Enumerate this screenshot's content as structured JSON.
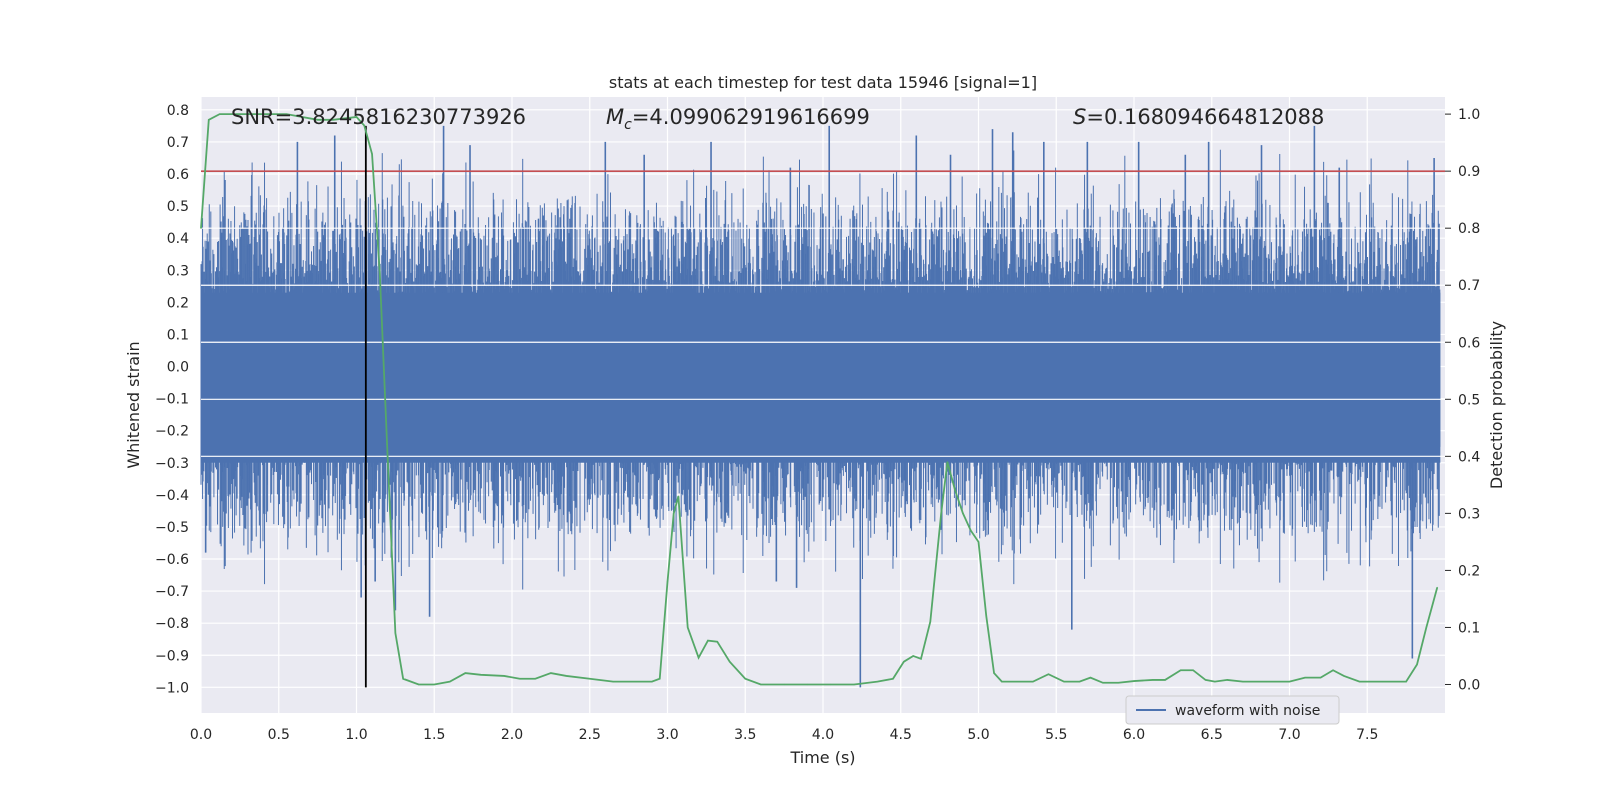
{
  "chart_data": {
    "type": "line",
    "title": "stats at each timestep for test data 15946 [signal=1]",
    "xlabel": "Time (s)",
    "ylabel": "Whitened strain",
    "y2label": "Detection probability",
    "xlim": [
      0.0,
      8.0
    ],
    "ylim": [
      -1.08,
      0.84
    ],
    "y2lim": [
      -0.05,
      1.03
    ],
    "xticks": [
      "0.0",
      "0.5",
      "1.0",
      "1.5",
      "2.0",
      "2.5",
      "3.0",
      "3.5",
      "4.0",
      "4.5",
      "5.0",
      "5.5",
      "6.0",
      "6.5",
      "7.0",
      "7.5"
    ],
    "xtick_values": [
      0,
      0.5,
      1,
      1.5,
      2,
      2.5,
      3,
      3.5,
      4,
      4.5,
      5,
      5.5,
      6,
      6.5,
      7,
      7.5
    ],
    "yticks": [
      "0.8",
      "0.7",
      "0.6",
      "0.5",
      "0.4",
      "0.3",
      "0.2",
      "0.1",
      "0.0",
      "−0.1",
      "−0.2",
      "−0.3",
      "−0.4",
      "−0.5",
      "−0.6",
      "−0.7",
      "−0.8",
      "−0.9",
      "−1.0"
    ],
    "ytick_values": [
      0.8,
      0.7,
      0.6,
      0.5,
      0.4,
      0.3,
      0.2,
      0.1,
      0,
      -0.1,
      -0.2,
      -0.3,
      -0.4,
      -0.5,
      -0.6,
      -0.7,
      -0.8,
      -0.9,
      -1.0
    ],
    "y2ticks": [
      "1.0",
      "0.9",
      "0.8",
      "0.7",
      "0.6",
      "0.5",
      "0.4",
      "0.3",
      "0.2",
      "0.1",
      "0.0"
    ],
    "y2tick_values": [
      1,
      0.9,
      0.8,
      0.7,
      0.6,
      0.5,
      0.4,
      0.3,
      0.2,
      0.1,
      0
    ],
    "grid": true,
    "legend": {
      "placement": "bottom-right",
      "entries": [
        "waveform with noise"
      ]
    },
    "annotations": {
      "snr": "SNR=3.8245816230773926",
      "mc_prefix": "M",
      "mc_sub": "c",
      "mc_value": "=4.099062919616699",
      "s_prefix": "S",
      "s_value": "=0.168094664812088"
    },
    "threshold_line": {
      "y2": 0.9,
      "color": "#c44e52"
    },
    "marker_line": {
      "x": 1.06,
      "y_from": -1.0,
      "y_to": 0.75,
      "color": "#000000"
    },
    "series": [
      {
        "name": "waveform with noise",
        "axis": "left",
        "color": "#4c72b0",
        "description_envelope": {
          "typical_amplitude": 0.3,
          "peak_min": -1.0,
          "peak_max": 0.8
        },
        "spikes": [
          {
            "x": 0.03,
            "y": -0.58
          },
          {
            "x": 0.62,
            "y": 0.7
          },
          {
            "x": 0.86,
            "y": 0.72
          },
          {
            "x": 1.03,
            "y": -0.72
          },
          {
            "x": 1.12,
            "y": -0.67
          },
          {
            "x": 1.25,
            "y": -0.76
          },
          {
            "x": 1.47,
            "y": -0.78
          },
          {
            "x": 1.56,
            "y": 0.75
          },
          {
            "x": 1.73,
            "y": 0.69
          },
          {
            "x": 2.6,
            "y": 0.7
          },
          {
            "x": 2.85,
            "y": 0.66
          },
          {
            "x": 3.28,
            "y": 0.7
          },
          {
            "x": 3.7,
            "y": -0.67
          },
          {
            "x": 3.79,
            "y": 0.62
          },
          {
            "x": 3.83,
            "y": -0.69
          },
          {
            "x": 4.04,
            "y": 0.75
          },
          {
            "x": 4.24,
            "y": -1.0
          },
          {
            "x": 4.6,
            "y": 0.72
          },
          {
            "x": 4.82,
            "y": 0.66
          },
          {
            "x": 5.09,
            "y": 0.74
          },
          {
            "x": 5.22,
            "y": 0.73
          },
          {
            "x": 5.42,
            "y": 0.7
          },
          {
            "x": 5.6,
            "y": -0.82
          },
          {
            "x": 5.7,
            "y": 0.7
          },
          {
            "x": 6.03,
            "y": 0.7
          },
          {
            "x": 6.33,
            "y": 0.66
          },
          {
            "x": 6.48,
            "y": 0.7
          },
          {
            "x": 6.82,
            "y": 0.69
          },
          {
            "x": 7.16,
            "y": 0.75
          },
          {
            "x": 7.32,
            "y": 0.62
          },
          {
            "x": 7.79,
            "y": -0.91
          },
          {
            "x": 7.93,
            "y": 0.65
          }
        ]
      },
      {
        "name": "",
        "axis": "right",
        "color": "#55a868",
        "x": [
          0.0,
          0.05,
          0.12,
          0.3,
          0.55,
          0.75,
          0.85,
          1.0,
          1.05,
          1.1,
          1.15,
          1.2,
          1.25,
          1.3,
          1.4,
          1.5,
          1.6,
          1.7,
          1.8,
          1.95,
          2.05,
          2.15,
          2.25,
          2.35,
          2.5,
          2.65,
          2.8,
          2.9,
          2.95,
          3.0,
          3.04,
          3.07,
          3.13,
          3.2,
          3.26,
          3.32,
          3.4,
          3.5,
          3.6,
          3.75,
          3.9,
          4.05,
          4.2,
          4.35,
          4.45,
          4.52,
          4.58,
          4.63,
          4.69,
          4.76,
          4.8,
          4.85,
          4.9,
          4.95,
          5.0,
          5.05,
          5.1,
          5.15,
          5.25,
          5.35,
          5.45,
          5.55,
          5.65,
          5.72,
          5.8,
          5.9,
          6.0,
          6.12,
          6.2,
          6.3,
          6.38,
          6.46,
          6.52,
          6.6,
          6.7,
          6.85,
          7.0,
          7.1,
          7.2,
          7.28,
          7.35,
          7.45,
          7.6,
          7.75,
          7.82,
          7.88,
          7.95
        ],
        "y": [
          0.8,
          0.99,
          1.0,
          1.0,
          1.0,
          0.99,
          0.99,
          0.995,
          0.98,
          0.93,
          0.72,
          0.4,
          0.09,
          0.01,
          0.0,
          0.0,
          0.005,
          0.02,
          0.017,
          0.015,
          0.01,
          0.01,
          0.02,
          0.015,
          0.01,
          0.005,
          0.005,
          0.005,
          0.01,
          0.18,
          0.3,
          0.33,
          0.1,
          0.047,
          0.077,
          0.075,
          0.04,
          0.01,
          0.0,
          0.0,
          0.0,
          0.0,
          0.0,
          0.005,
          0.01,
          0.04,
          0.05,
          0.045,
          0.11,
          0.3,
          0.39,
          0.34,
          0.3,
          0.27,
          0.25,
          0.12,
          0.02,
          0.005,
          0.005,
          0.005,
          0.018,
          0.005,
          0.005,
          0.012,
          0.003,
          0.003,
          0.006,
          0.008,
          0.008,
          0.025,
          0.025,
          0.008,
          0.005,
          0.008,
          0.005,
          0.005,
          0.005,
          0.012,
          0.012,
          0.025,
          0.015,
          0.005,
          0.005,
          0.005,
          0.035,
          0.1,
          0.17
        ]
      }
    ]
  }
}
